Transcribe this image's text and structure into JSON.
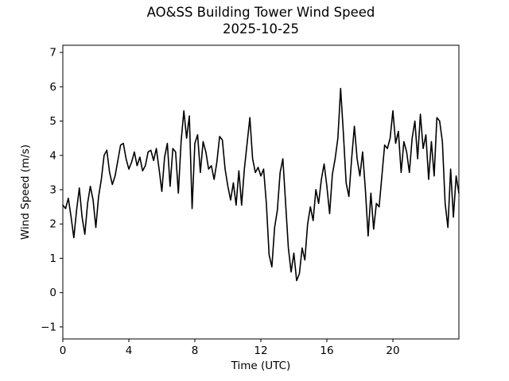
{
  "figure": {
    "title": "AO&SS Building Tower Wind Speed",
    "subtitle": "2025-10-25",
    "xlabel": "Time (UTC)",
    "ylabel": "Wind Speed (m/s)"
  },
  "chart_data": {
    "type": "line",
    "title": "AO&SS Building Tower Wind Speed",
    "subtitle": "2025-10-25",
    "xlabel": "Time (UTC)",
    "ylabel": "Wind Speed (m/s)",
    "grid": false,
    "legend": null,
    "background_color": "#ffffff",
    "line_color": "#000000",
    "line_width": 1.6,
    "axis_color": "#000000",
    "xlim": [
      0,
      24
    ],
    "ylim": [
      -1.35,
      7.21
    ],
    "x_ticks": [
      0,
      4,
      8,
      12,
      16,
      20
    ],
    "x_tick_labels": [
      "0",
      "4",
      "8",
      "12",
      "16",
      "20"
    ],
    "y_ticks": [
      -1,
      0,
      1,
      2,
      3,
      4,
      5,
      6,
      7
    ],
    "y_tick_labels": [
      "−1",
      "0",
      "1",
      "2",
      "3",
      "4",
      "5",
      "6",
      "7"
    ],
    "series": [
      {
        "name": "wind_speed_mps",
        "x_start": 0,
        "x_step": 0.1666667,
        "values": [
          2.55,
          2.45,
          2.75,
          2.2,
          1.6,
          2.4,
          3.05,
          2.2,
          1.7,
          2.6,
          3.1,
          2.7,
          1.9,
          2.8,
          3.3,
          4.0,
          4.15,
          3.5,
          3.15,
          3.4,
          3.85,
          4.3,
          4.35,
          3.9,
          3.6,
          3.8,
          4.1,
          3.7,
          3.95,
          3.55,
          3.7,
          4.1,
          4.15,
          3.85,
          4.2,
          3.6,
          2.95,
          3.95,
          4.35,
          3.1,
          4.2,
          4.1,
          2.9,
          4.4,
          5.3,
          4.5,
          5.15,
          2.45,
          4.35,
          4.6,
          3.5,
          4.4,
          4.1,
          3.6,
          3.7,
          3.3,
          3.8,
          4.55,
          4.45,
          3.6,
          3.1,
          2.7,
          3.2,
          2.55,
          3.55,
          2.55,
          3.6,
          4.35,
          5.1,
          3.9,
          3.5,
          3.65,
          3.4,
          3.6,
          2.6,
          1.1,
          0.75,
          1.9,
          2.4,
          3.5,
          3.9,
          2.6,
          1.3,
          0.6,
          1.15,
          0.35,
          0.55,
          1.3,
          0.95,
          2.0,
          2.5,
          2.1,
          3.0,
          2.6,
          3.3,
          3.75,
          3.1,
          2.3,
          3.45,
          3.9,
          4.5,
          5.95,
          4.65,
          3.2,
          2.8,
          3.9,
          4.85,
          3.9,
          3.4,
          4.1,
          3.0,
          1.65,
          2.9,
          1.85,
          2.6,
          2.5,
          3.4,
          4.3,
          4.2,
          4.5,
          5.3,
          4.35,
          4.7,
          3.5,
          4.4,
          4.1,
          3.5,
          4.5,
          5.0,
          3.9,
          5.2,
          4.2,
          4.6,
          3.3,
          4.4,
          3.4,
          5.1,
          5.0,
          4.4,
          2.6,
          1.9,
          3.6,
          2.2,
          3.4,
          2.9
        ]
      }
    ]
  }
}
